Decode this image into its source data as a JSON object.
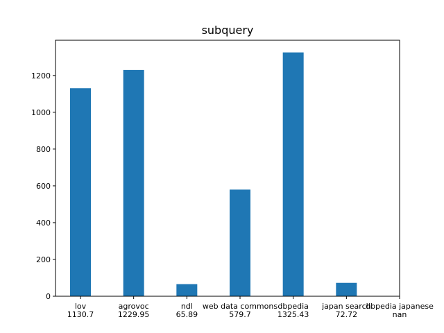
{
  "chart_data": {
    "type": "bar",
    "title": "subquery",
    "xlabel": "",
    "ylabel": "",
    "categories": [
      "lov",
      "agrovoc",
      "ndl",
      "web data commons",
      "dbpedia",
      "japan search",
      "dbpedia japanese"
    ],
    "value_labels": [
      "1130.7",
      "1229.95",
      "65.89",
      "579.7",
      "1325.43",
      "72.72",
      "nan"
    ],
    "values": [
      1130.7,
      1229.95,
      65.89,
      579.7,
      1325.43,
      72.72,
      null
    ],
    "ylim": [
      0,
      1391.7
    ],
    "yticks": [
      0,
      200,
      400,
      600,
      800,
      1000,
      1200
    ],
    "bar_color": "#1f77b4",
    "grid": false,
    "legend": "none"
  }
}
